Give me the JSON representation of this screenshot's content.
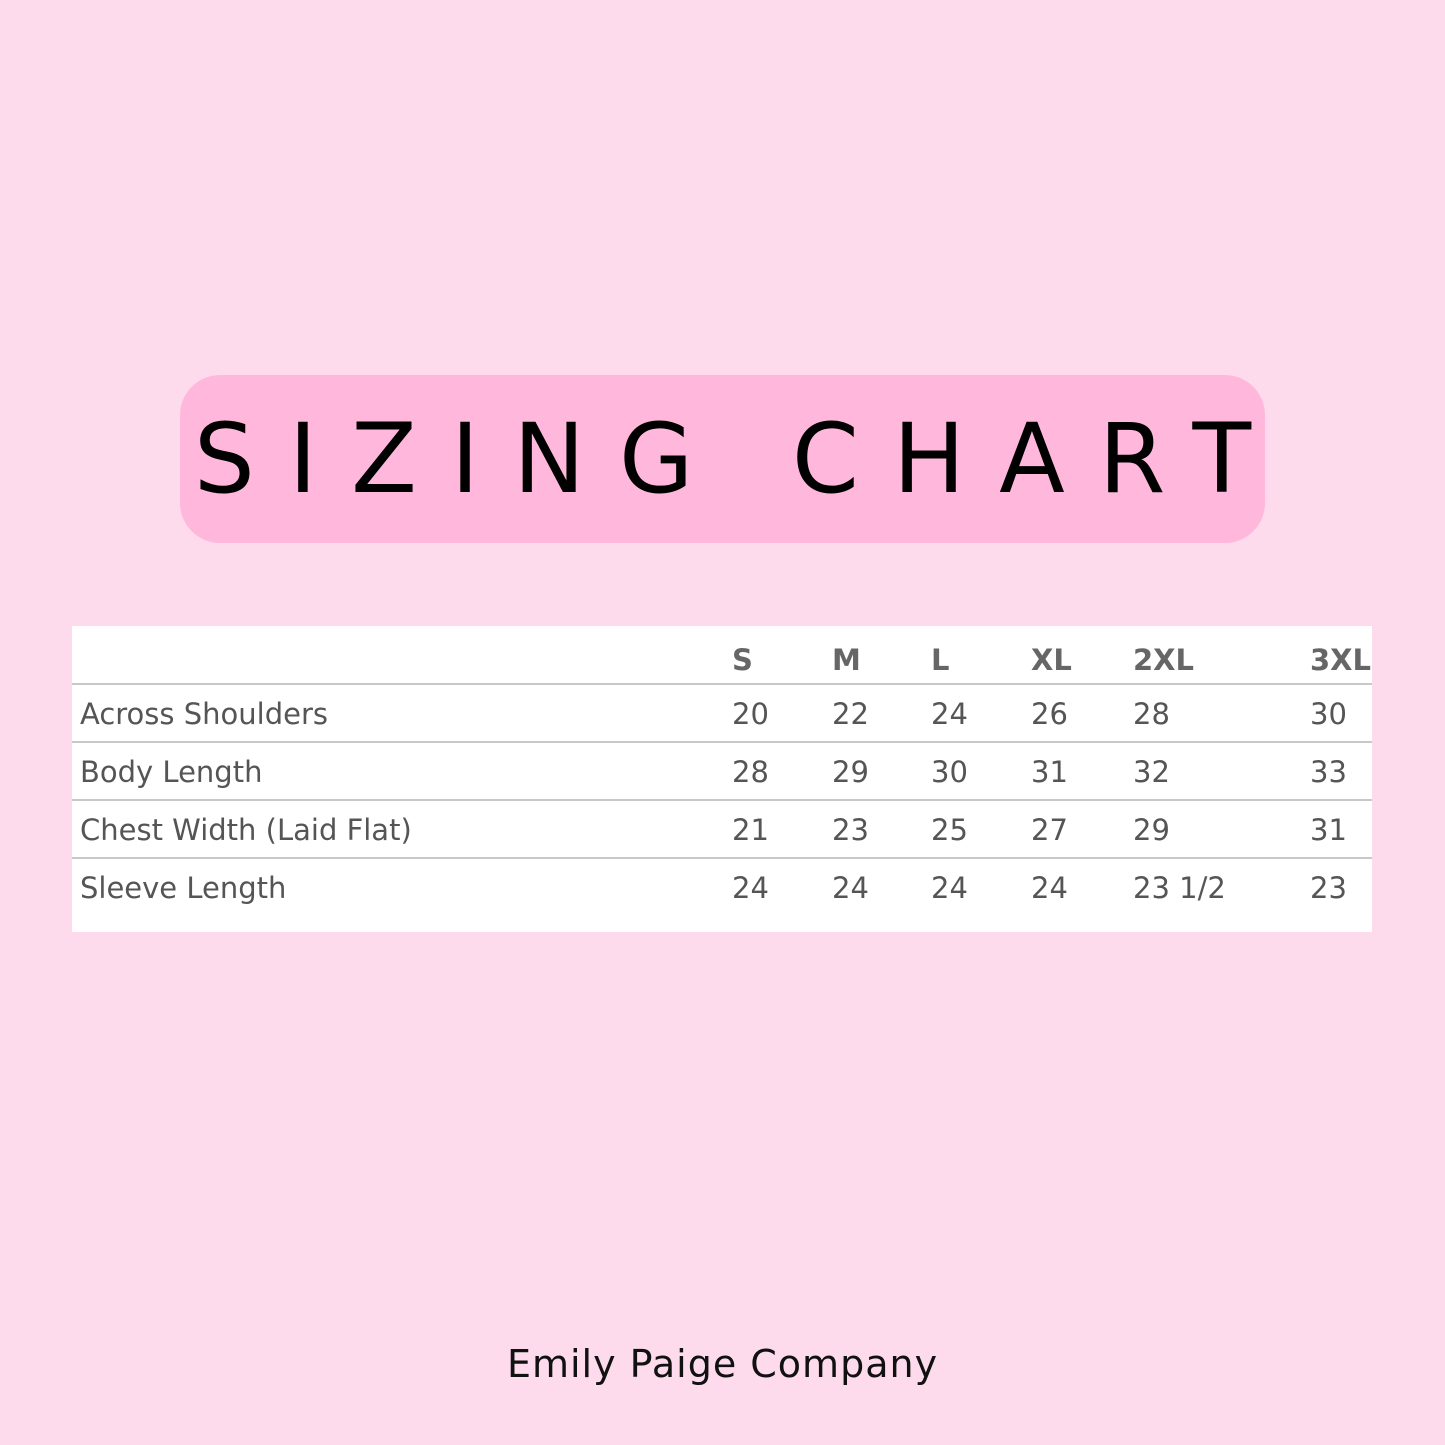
{
  "title": "SIZING CHART",
  "colors": {
    "background": "#fddbec",
    "title_box": "#ffb8dc",
    "table_bg": "#ffffff",
    "text": "#555555"
  },
  "table": {
    "columns": [
      "",
      "S",
      "M",
      "L",
      "XL",
      "2XL",
      "3XL"
    ],
    "rows": [
      [
        "Across Shoulders",
        "20",
        "22",
        "24",
        "26",
        "28",
        "30"
      ],
      [
        "Body Length",
        "28",
        "29",
        "30",
        "31",
        "32",
        "33"
      ],
      [
        "Chest Width (Laid Flat)",
        "21",
        "23",
        "25",
        "27",
        "29",
        "31"
      ],
      [
        "Sleeve Length",
        "24",
        "24",
        "24",
        "24",
        "23 1/2",
        "23"
      ]
    ]
  },
  "footer": "Emily Paige Company"
}
